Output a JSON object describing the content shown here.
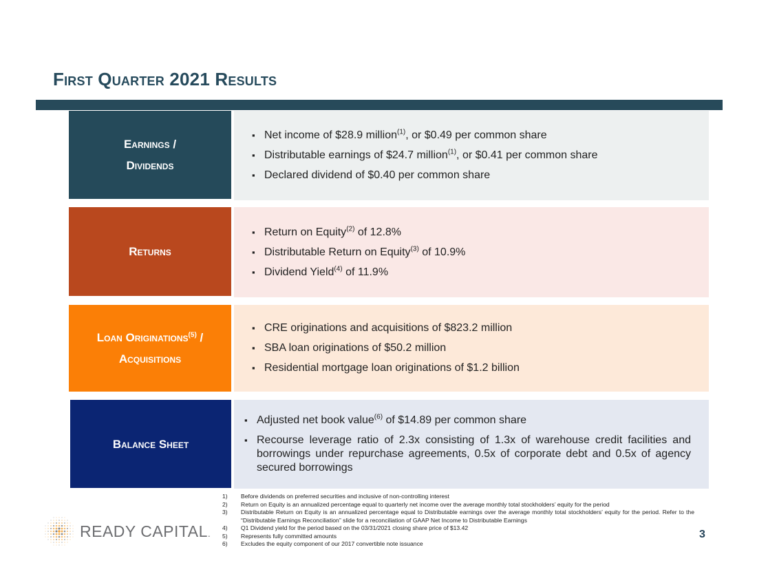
{
  "title": "First Quarter 2021 Results",
  "colors": {
    "title": "#264a5c",
    "rule": "#274a5a",
    "earnings_label": "#254a5a",
    "earnings_bg": "#edf0f0",
    "returns_label": "#b9481e",
    "returns_bg": "#fae8e6",
    "loans_label": "#fb7f06",
    "loans_bg": "#fde9d9",
    "balance_label": "#0b2573",
    "balance_bg": "#e4e8f1"
  },
  "sections": {
    "earnings": {
      "label_line1": "Earnings /",
      "label_line2": "Dividends",
      "b1_pre": "Net income of $28.9 million",
      "b1_sup": "(1)",
      "b1_post": ", or $0.49 per common share",
      "b2_pre": "Distributable earnings of $24.7 million",
      "b2_sup": "(1)",
      "b2_post": ", or $0.41 per common share",
      "b3": "Declared dividend of $0.40 per common share"
    },
    "returns": {
      "label": "Returns",
      "b1_pre": "Return on Equity",
      "b1_sup": "(2)",
      "b1_post": " of 12.8%",
      "b2_pre": "Distributable Return on Equity",
      "b2_sup": "(3)",
      "b2_post": " of 10.9%",
      "b3_pre": "Dividend Yield",
      "b3_sup": "(4)",
      "b3_post": " of 11.9%"
    },
    "loans": {
      "label_line1_pre": "Loan Originations",
      "label_line1_sup": "(5)",
      "label_line1_post": " /",
      "label_line2": "Acquisitions",
      "b1": "CRE originations and acquisitions of $823.2 million",
      "b2": "SBA loan originations of $50.2 million",
      "b3": "Residential mortgage loan originations of $1.2 billion"
    },
    "balance": {
      "label": "Balance Sheet",
      "b1_pre": "Adjusted net book value",
      "b1_sup": "(6)",
      "b1_post": " of $14.89 per common share",
      "b2": "Recourse leverage ratio of 2.3x consisting of 1.3x of warehouse credit facilities and borrowings under repurchase agreements, 0.5x of corporate debt and 0.5x of agency secured borrowings"
    }
  },
  "footnotes": [
    {
      "num": "1)",
      "text": "Before dividends on preferred securities and inclusive of non-controlling interest"
    },
    {
      "num": "2)",
      "text": "Return on Equity is an annualized percentage equal to quarterly net income over the average monthly total stockholders’ equity for the period"
    },
    {
      "num": "3)",
      "text": "Distributable Return on Equity is an annualized percentage equal to Distributable earnings over the average monthly total stockholders’ equity for the period. Refer to the “Distributable Earnings Reconciliation” slide for a reconciliation of GAAP Net Income to Distributable Earnings"
    },
    {
      "num": "4)",
      "text": "Q1 Dividend yield for the period based on the 03/31/2021 closing share price of $13.42"
    },
    {
      "num": "5)",
      "text": "Represents fully committed amounts"
    },
    {
      "num": "6)",
      "text": "Excludes the equity component of our 2017 convertible note issuance"
    }
  ],
  "logo": {
    "text": "READY CAPITAL",
    "mark": ".",
    "icon": "grid-globe-logo-icon",
    "color_gold": "#f0a43a",
    "color_gray": "#6d6e71"
  },
  "page_number": "3"
}
